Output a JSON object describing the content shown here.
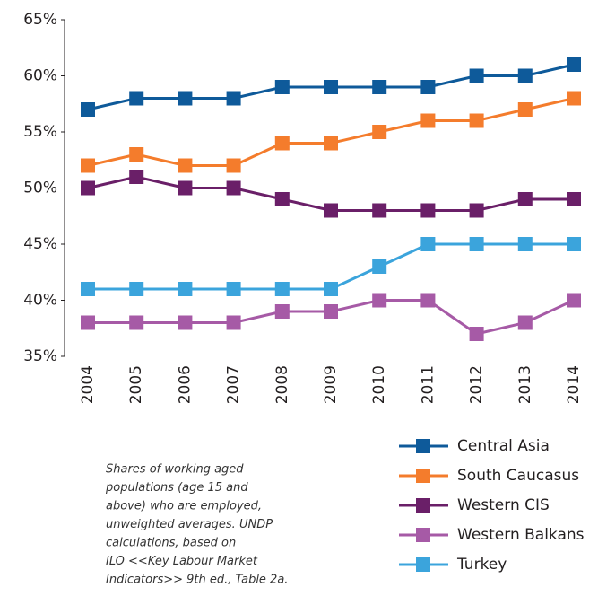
{
  "chart_data": {
    "type": "line",
    "categories": [
      "2004",
      "2005",
      "2006",
      "2007",
      "2008",
      "2009",
      "2010",
      "2011",
      "2012",
      "2013",
      "2014"
    ],
    "series": [
      {
        "name": "Central Asia",
        "color": "#0e5a9a",
        "values": [
          57,
          58,
          58,
          58,
          59,
          59,
          59,
          59,
          60,
          60,
          61
        ]
      },
      {
        "name": "South Caucasus",
        "color": "#f47c2c",
        "values": [
          52,
          53,
          52,
          52,
          54,
          54,
          55,
          56,
          56,
          57,
          58
        ]
      },
      {
        "name": "Western CIS",
        "color": "#6a1f68",
        "values": [
          50,
          51,
          50,
          50,
          49,
          48,
          48,
          48,
          48,
          49,
          49
        ]
      },
      {
        "name": "Western Balkans",
        "color": "#a65aa6",
        "values": [
          38,
          38,
          38,
          38,
          39,
          39,
          40,
          40,
          37,
          38,
          40
        ]
      },
      {
        "name": "Turkey",
        "color": "#3ba4dc",
        "values": [
          41,
          41,
          41,
          41,
          41,
          41,
          43,
          45,
          45,
          45,
          45
        ]
      }
    ],
    "ylim": [
      35,
      65
    ],
    "yticks": [
      {
        "value": 35,
        "label": "35%"
      },
      {
        "value": 40,
        "label": "40%"
      },
      {
        "value": 45,
        "label": "45%"
      },
      {
        "value": 50,
        "label": "50%"
      },
      {
        "value": 55,
        "label": "55%"
      },
      {
        "value": 60,
        "label": "60%"
      },
      {
        "value": 65,
        "label": "65%"
      }
    ],
    "grid": false,
    "legend": "bottom-right",
    "note_lines": [
      "Shares of working aged",
      "populations (age 15 and",
      "above) who are employed,",
      "unweighted averages. UNDP",
      "calculations, based on",
      "ILO <<Key Labour Market",
      "Indicators>> 9th ed., Table 2a."
    ]
  }
}
